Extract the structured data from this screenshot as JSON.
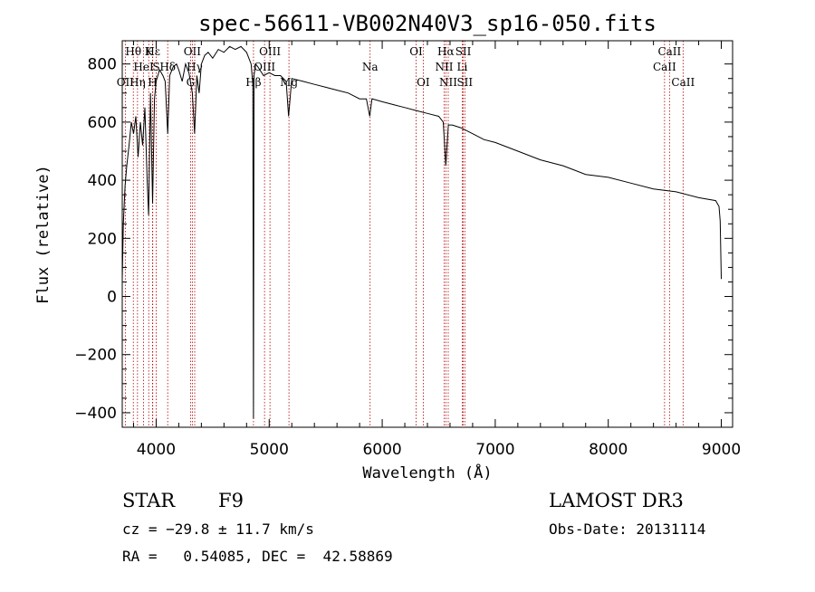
{
  "chart_data": {
    "type": "line",
    "title": "spec-56611-VB002N40V3_sp16-050.fits",
    "xlabel": "Wavelength (Å)",
    "ylabel": "Flux (relative)",
    "xlim": [
      3700,
      9100
    ],
    "ylim": [
      -450,
      880
    ],
    "xticks": [
      4000,
      5000,
      6000,
      7000,
      8000,
      9000
    ],
    "xtick_labels": [
      "4000",
      "5000",
      "6000",
      "7000",
      "8000",
      "9000"
    ],
    "yticks": [
      -400,
      -200,
      0,
      200,
      400,
      600,
      800
    ],
    "ytick_labels": [
      "−400",
      "−200",
      "0",
      "200",
      "400",
      "600",
      "800"
    ],
    "series": [
      {
        "name": "flux",
        "x": [
          3700,
          3710,
          3725,
          3740,
          3760,
          3780,
          3800,
          3820,
          3840,
          3860,
          3880,
          3900,
          3920,
          3933,
          3950,
          3968,
          3985,
          4000,
          4030,
          4060,
          4080,
          4102,
          4120,
          4150,
          4180,
          4200,
          4230,
          4260,
          4290,
          4320,
          4340,
          4360,
          4380,
          4400,
          4430,
          4460,
          4500,
          4550,
          4600,
          4650,
          4700,
          4750,
          4800,
          4840,
          4855,
          4861,
          4866,
          4880,
          4900,
          4950,
          5000,
          5050,
          5100,
          5150,
          5172,
          5200,
          5300,
          5400,
          5500,
          5600,
          5700,
          5800,
          5860,
          5890,
          5896,
          5910,
          6000,
          6100,
          6200,
          6300,
          6400,
          6500,
          6540,
          6563,
          6585,
          6620,
          6700,
          6800,
          6900,
          7000,
          7200,
          7400,
          7600,
          7800,
          8000,
          8200,
          8400,
          8600,
          8800,
          8950,
          8980,
          8990,
          9000
        ],
        "y": [
          60,
          250,
          380,
          450,
          520,
          600,
          560,
          620,
          480,
          600,
          520,
          650,
          400,
          280,
          700,
          320,
          680,
          740,
          780,
          760,
          740,
          560,
          760,
          790,
          800,
          780,
          740,
          800,
          770,
          700,
          560,
          760,
          700,
          800,
          830,
          840,
          820,
          850,
          840,
          860,
          850,
          860,
          840,
          800,
          730,
          -420,
          760,
          800,
          790,
          760,
          770,
          760,
          760,
          740,
          620,
          750,
          740,
          730,
          720,
          710,
          700,
          680,
          680,
          620,
          640,
          680,
          670,
          660,
          650,
          640,
          630,
          620,
          600,
          450,
          590,
          590,
          580,
          560,
          540,
          530,
          500,
          470,
          450,
          420,
          410,
          390,
          370,
          360,
          340,
          330,
          310,
          260,
          60
        ]
      }
    ],
    "lines": [
      {
        "label": "Hθ",
        "x": 3798,
        "row": 1
      },
      {
        "label": "OII",
        "x": 3727,
        "row": 3
      },
      {
        "label": "Hη",
        "x": 3835,
        "row": 3
      },
      {
        "label": "HeI",
        "x": 3889,
        "row": 2
      },
      {
        "label": "K",
        "x": 3934,
        "row": 1
      },
      {
        "label": "H",
        "x": 3968,
        "row": 3
      },
      {
        "label": "Hε",
        "x": 3970,
        "row": 1
      },
      {
        "label": "S",
        "x": 4000,
        "row": 2
      },
      {
        "label": "Hδ",
        "x": 4102,
        "row": 2
      },
      {
        "label": "OII",
        "x": 4320,
        "row": 1
      },
      {
        "label": "Hγ",
        "x": 4341,
        "row": 2
      },
      {
        "label": "G",
        "x": 4304,
        "row": 3
      },
      {
        "label": "Hβ",
        "x": 4861,
        "row": 3
      },
      {
        "label": "OIII",
        "x": 4959,
        "row": 2
      },
      {
        "label": "OIII",
        "x": 5007,
        "row": 1
      },
      {
        "label": "Mg",
        "x": 5175,
        "row": 3
      },
      {
        "label": "Na",
        "x": 5893,
        "row": 2
      },
      {
        "label": "OI",
        "x": 6300,
        "row": 1
      },
      {
        "label": "OI",
        "x": 6363,
        "row": 3
      },
      {
        "label": "Hα",
        "x": 6563,
        "row": 1
      },
      {
        "label": "NII",
        "x": 6548,
        "row": 2
      },
      {
        "label": "NII",
        "x": 6584,
        "row": 3
      },
      {
        "label": "SII",
        "x": 6717,
        "row": 1
      },
      {
        "label": "Li",
        "x": 6708,
        "row": 2
      },
      {
        "label": "SII",
        "x": 6731,
        "row": 3
      },
      {
        "label": "CaII",
        "x": 8498,
        "row": 2
      },
      {
        "label": "CaII",
        "x": 8542,
        "row": 1
      },
      {
        "label": "CaII",
        "x": 8662,
        "row": 3
      }
    ]
  },
  "info": {
    "object_type": "STAR",
    "subclass": "F9",
    "survey": "LAMOST DR3",
    "cz": "cz = −29.8 ± 11.7 km/s",
    "obs_date": "Obs-Date: 20131114",
    "coords": "RA =   0.54085, DEC =  42.58869"
  },
  "colors": {
    "spectrum": "#000000",
    "line_marker": "#b00000"
  }
}
